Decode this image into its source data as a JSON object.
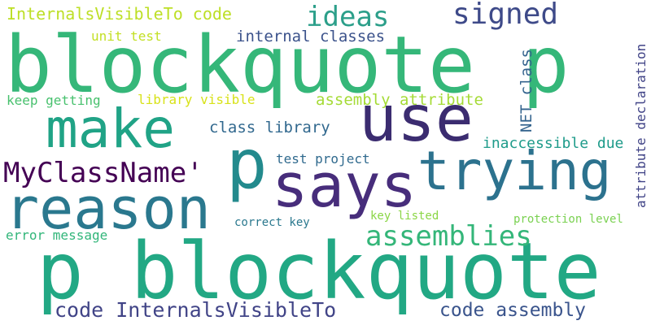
{
  "words": [
    {
      "text": "blockquote p",
      "color": "#35b779"
    },
    {
      "text": "p blockquote",
      "color": "#22a884"
    },
    {
      "text": "p",
      "color": "#238a8d"
    },
    {
      "text": "says",
      "color": "#472d7b"
    },
    {
      "text": "use",
      "color": "#3b2c70"
    },
    {
      "text": "trying",
      "color": "#2c728e"
    },
    {
      "text": "reason",
      "color": "#2a788e"
    },
    {
      "text": "make",
      "color": "#20a386"
    },
    {
      "text": "MyClassName'",
      "color": "#440154"
    },
    {
      "text": "ideas",
      "color": "#2c9f8a"
    },
    {
      "text": "signed",
      "color": "#3e4a89"
    },
    {
      "text": "assemblies",
      "color": "#34b679"
    },
    {
      "text": "code InternalsVisibleTo",
      "color": "#414487"
    },
    {
      "text": "code assembly",
      "color": "#3a548c"
    },
    {
      "text": "InternalsVisibleTo code",
      "color": "#bddf26"
    },
    {
      "text": "internal classes",
      "color": "#3b528b"
    },
    {
      "text": "class library",
      "color": "#31688e"
    },
    {
      "text": "unit test",
      "color": "#c2df23"
    },
    {
      "text": "keep getting",
      "color": "#48c16e"
    },
    {
      "text": "library visible",
      "color": "#d8e219"
    },
    {
      "text": "assembly attribute",
      "color": "#a5db36"
    },
    {
      "text": "test project",
      "color": "#306a8e"
    },
    {
      "text": "inaccessible due",
      "color": "#1e9b8a"
    },
    {
      "text": "NET class",
      "color": "#33638d"
    },
    {
      "text": "attribute declaration",
      "color": "#414487"
    },
    {
      "text": "correct key",
      "color": "#2a788e"
    },
    {
      "text": "key listed",
      "color": "#8bd646"
    },
    {
      "text": "protection level",
      "color": "#7ad151"
    },
    {
      "text": "error message",
      "color": "#32b67a"
    }
  ]
}
